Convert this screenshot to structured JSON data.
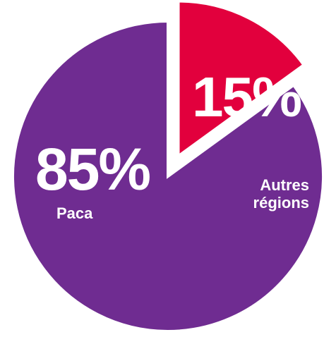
{
  "chart_data": {
    "type": "pie",
    "categories": [
      "Paca",
      "Autres régions"
    ],
    "values": [
      85,
      15
    ],
    "value_labels": [
      "85%",
      "15%"
    ],
    "colors": [
      "#6f2c91",
      "#e2003d"
    ]
  }
}
